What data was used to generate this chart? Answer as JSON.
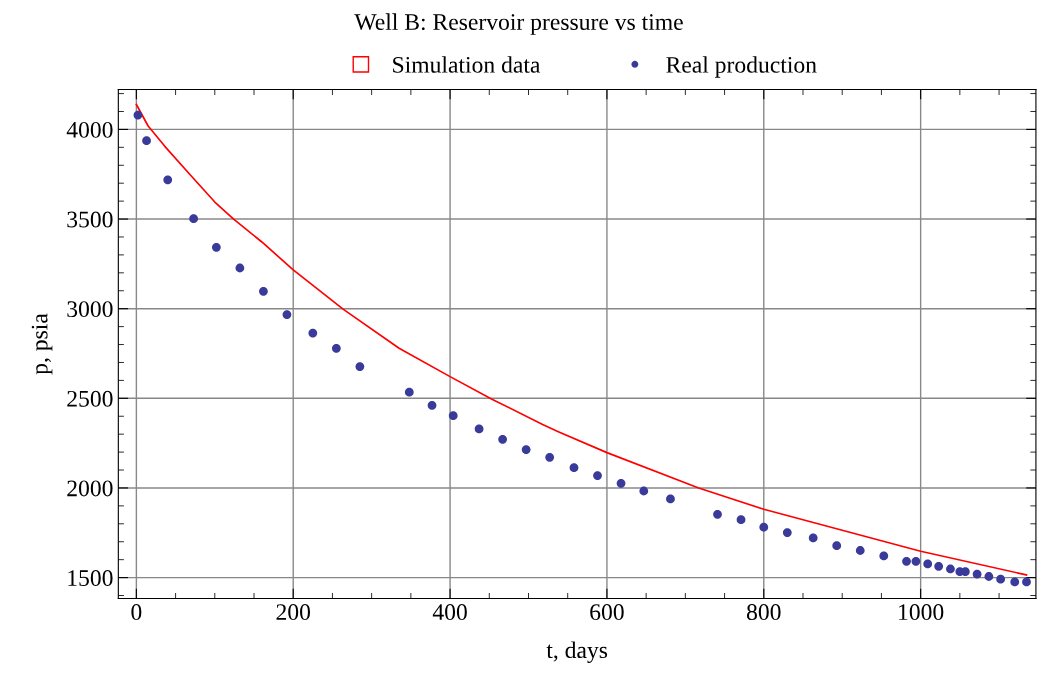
{
  "chart_data": {
    "type": "line",
    "title": "Well B: Reservoir pressure vs time",
    "xlabel": "t, days",
    "ylabel": "p, psia",
    "xlim": [
      -23,
      1147
    ],
    "ylim": [
      1383,
      4223
    ],
    "xticks": [
      0,
      200,
      400,
      600,
      800,
      1000
    ],
    "yticks": [
      1500,
      2000,
      2500,
      3000,
      3500,
      4000
    ],
    "grid": true,
    "legend": "top",
    "line_style": "solid",
    "series": [
      {
        "name": "Simulation data",
        "color": "#ff0000",
        "x": [
          0,
          15,
          36,
          70,
          100,
          124,
          160,
          200,
          264,
          335,
          400,
          454,
          518,
          538,
          600,
          717,
          800,
          1000,
          1135
        ],
        "values": [
          4139,
          4019,
          3907,
          3740,
          3595,
          3500,
          3372,
          3217,
          2996,
          2779,
          2621,
          2494,
          2354,
          2314,
          2197,
          2000,
          1881,
          1647,
          1515
        ]
      },
      {
        "name": "Real production",
        "type": "scatter",
        "marker": "circle",
        "color": "#3a3a9a",
        "x": [
          2,
          13,
          40,
          73,
          102,
          132,
          162,
          192,
          225,
          255,
          285,
          348,
          377,
          404,
          437,
          467,
          497,
          527,
          558,
          588,
          618,
          647,
          681,
          741,
          771,
          800,
          830,
          863,
          893,
          923,
          953,
          982,
          994,
          1009,
          1023,
          1038,
          1050,
          1057,
          1072,
          1087,
          1102,
          1120,
          1135
        ],
        "values": [
          4080,
          3937,
          3719,
          3502,
          3342,
          3227,
          3097,
          2967,
          2864,
          2779,
          2677,
          2534,
          2461,
          2403,
          2329,
          2271,
          2214,
          2171,
          2113,
          2069,
          2026,
          1983,
          1939,
          1853,
          1823,
          1781,
          1751,
          1721,
          1678,
          1651,
          1621,
          1591,
          1591,
          1576,
          1563,
          1548,
          1533,
          1533,
          1519,
          1506,
          1491,
          1476,
          1476
        ]
      }
    ]
  }
}
